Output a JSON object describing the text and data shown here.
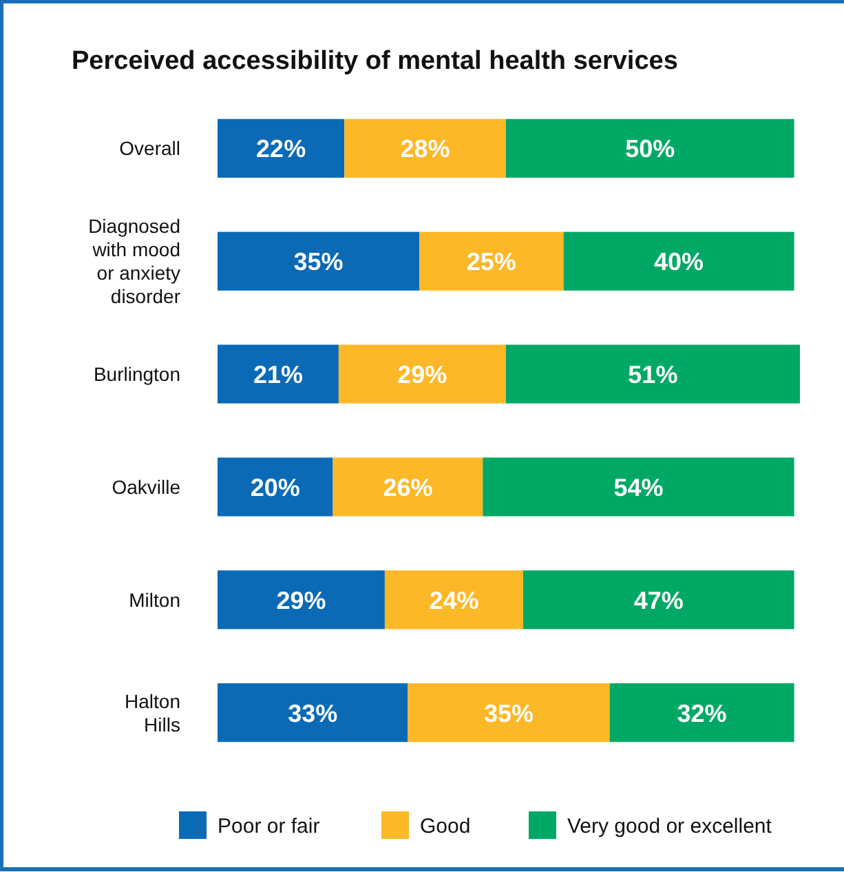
{
  "chart_data": {
    "type": "bar",
    "orientation": "horizontal",
    "stacked": true,
    "title": "Perceived accessibility of mental health services",
    "categories": [
      "Overall",
      "Diagnosed with mood or anxiety disorder",
      "Burlington",
      "Oakville",
      "Milton",
      "Halton Hills"
    ],
    "series": [
      {
        "name": "Poor or fair",
        "color": "#0a6ab6",
        "values": [
          22,
          35,
          21,
          20,
          29,
          33
        ],
        "value_labels": [
          "22%",
          "35%",
          "21%",
          "20%",
          "29%",
          "33%"
        ]
      },
      {
        "name": "Good",
        "color": "#fdb827",
        "values": [
          28,
          25,
          29,
          26,
          24,
          35
        ],
        "value_labels": [
          "28%",
          "25%",
          "29%",
          "26%",
          "24%",
          "35%"
        ]
      },
      {
        "name": "Very good or excellent",
        "color": "#00a865",
        "values": [
          50,
          40,
          51,
          54,
          47,
          32
        ],
        "value_labels": [
          "50%",
          "40%",
          "51%",
          "54%",
          "47%",
          "32%"
        ]
      }
    ],
    "xlim": [
      0,
      101
    ],
    "tick_labels": "y",
    "legend": "bottom"
  }
}
